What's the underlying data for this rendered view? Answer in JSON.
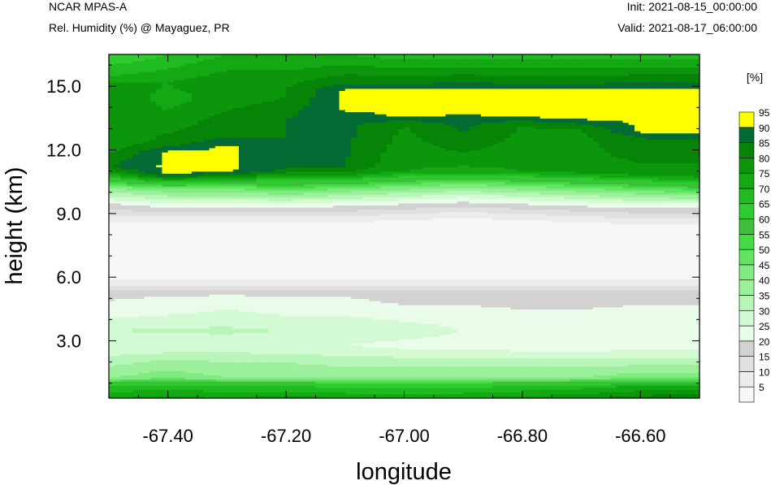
{
  "header": {
    "model": "NCAR MPAS-A",
    "field": "Rel. Humidity (%) @ Mayaguez, PR",
    "init": "Init: 2021-08-15_00:00:00",
    "valid": "Valid: 2021-08-17_06:00:00"
  },
  "chart_data": {
    "type": "heatmap",
    "title": "Rel. Humidity (%) @ Mayaguez, PR",
    "xlabel": "longitude",
    "ylabel": "height (km)",
    "xlim": [
      -67.5,
      -66.5
    ],
    "ylim": [
      0.3,
      16.5
    ],
    "x_ticks": [
      -67.4,
      -67.2,
      -67.0,
      -66.8,
      -66.6
    ],
    "x_tick_labels": [
      "-67.40",
      "-67.20",
      "-67.00",
      "-66.80",
      "-66.60"
    ],
    "y_ticks": [
      3,
      6,
      9,
      12,
      15
    ],
    "y_tick_labels": [
      "3.0",
      "6.0",
      "9.0",
      "12.0",
      "15.0"
    ],
    "colorbar": {
      "unit": "[%]",
      "levels": [
        5,
        10,
        15,
        20,
        25,
        30,
        35,
        40,
        45,
        50,
        55,
        60,
        65,
        70,
        75,
        80,
        85,
        90,
        95
      ],
      "colors": [
        "#f7f7f7",
        "#ececec",
        "#e0e0e0",
        "#d2d2d2",
        "#e9fce9",
        "#d4fad4",
        "#b8f5b8",
        "#9cf09c",
        "#80eb80",
        "#62e462",
        "#45db45",
        "#3ebc3e",
        "#2ecc2e",
        "#20bb20",
        "#14a814",
        "#0c960c",
        "#078407",
        "#036b33",
        "#ffff00"
      ]
    },
    "profiles": [
      {
        "x": -67.5,
        "rh": [
          [
            0.3,
            80
          ],
          [
            0.9,
            70
          ],
          [
            1.3,
            45
          ],
          [
            2.0,
            38
          ],
          [
            2.8,
            30
          ],
          [
            3.5,
            35
          ],
          [
            4.5,
            26
          ],
          [
            5.3,
            24
          ],
          [
            5.6,
            15
          ],
          [
            6.2,
            5
          ],
          [
            8.3,
            5
          ],
          [
            8.9,
            15
          ],
          [
            9.5,
            25
          ],
          [
            10.2,
            45
          ],
          [
            10.8,
            75
          ],
          [
            11.2,
            90
          ],
          [
            12.5,
            80
          ],
          [
            15.0,
            85
          ],
          [
            15.5,
            75
          ],
          [
            16.5,
            65
          ]
        ]
      },
      {
        "x": -67.4,
        "rh": [
          [
            0.3,
            82
          ],
          [
            0.9,
            72
          ],
          [
            1.3,
            48
          ],
          [
            2.0,
            42
          ],
          [
            2.8,
            30
          ],
          [
            3.5,
            36
          ],
          [
            4.5,
            28
          ],
          [
            5.3,
            24
          ],
          [
            5.6,
            15
          ],
          [
            6.2,
            5
          ],
          [
            8.3,
            5
          ],
          [
            8.9,
            15
          ],
          [
            9.5,
            30
          ],
          [
            10.2,
            50
          ],
          [
            10.7,
            85
          ],
          [
            10.9,
            96
          ],
          [
            11.9,
            96
          ],
          [
            12.3,
            88
          ],
          [
            13.3,
            82
          ],
          [
            14.5,
            78
          ],
          [
            15.2,
            80
          ],
          [
            16.5,
            70
          ]
        ]
      },
      {
        "x": -67.3,
        "rh": [
          [
            0.3,
            80
          ],
          [
            0.9,
            70
          ],
          [
            1.3,
            45
          ],
          [
            2.0,
            40
          ],
          [
            2.8,
            32
          ],
          [
            3.5,
            36
          ],
          [
            4.5,
            30
          ],
          [
            5.3,
            24
          ],
          [
            5.6,
            15
          ],
          [
            6.2,
            5
          ],
          [
            8.3,
            5
          ],
          [
            8.9,
            15
          ],
          [
            9.5,
            30
          ],
          [
            10.2,
            50
          ],
          [
            10.8,
            85
          ],
          [
            11.0,
            96
          ],
          [
            12.2,
            96
          ],
          [
            12.6,
            90
          ],
          [
            13.3,
            88
          ],
          [
            14.5,
            82
          ],
          [
            15.0,
            85
          ],
          [
            16.5,
            75
          ]
        ]
      },
      {
        "x": -67.2,
        "rh": [
          [
            0.3,
            82
          ],
          [
            0.9,
            70
          ],
          [
            1.3,
            45
          ],
          [
            2.0,
            40
          ],
          [
            2.8,
            30
          ],
          [
            3.5,
            35
          ],
          [
            4.5,
            28
          ],
          [
            5.3,
            24
          ],
          [
            5.6,
            15
          ],
          [
            6.2,
            5
          ],
          [
            8.3,
            5
          ],
          [
            8.9,
            15
          ],
          [
            9.5,
            30
          ],
          [
            10.2,
            55
          ],
          [
            10.8,
            80
          ],
          [
            11.1,
            90
          ],
          [
            13.5,
            90
          ],
          [
            14.5,
            85
          ],
          [
            15.0,
            85
          ],
          [
            16.5,
            75
          ]
        ]
      },
      {
        "x": -67.1,
        "rh": [
          [
            0.3,
            80
          ],
          [
            0.9,
            68
          ],
          [
            1.3,
            45
          ],
          [
            2.0,
            38
          ],
          [
            2.8,
            30
          ],
          [
            3.5,
            34
          ],
          [
            4.5,
            28
          ],
          [
            5.3,
            24
          ],
          [
            5.6,
            15
          ],
          [
            6.2,
            5
          ],
          [
            8.3,
            5
          ],
          [
            8.9,
            15
          ],
          [
            9.5,
            28
          ],
          [
            10.2,
            50
          ],
          [
            10.8,
            80
          ],
          [
            11.2,
            90
          ],
          [
            13.6,
            92
          ],
          [
            13.9,
            96
          ],
          [
            14.8,
            96
          ],
          [
            15.1,
            90
          ],
          [
            16.5,
            75
          ]
        ]
      },
      {
        "x": -67.0,
        "rh": [
          [
            0.3,
            78
          ],
          [
            0.9,
            68
          ],
          [
            1.3,
            45
          ],
          [
            2.0,
            38
          ],
          [
            2.8,
            28
          ],
          [
            3.5,
            33
          ],
          [
            4.5,
            26
          ],
          [
            5.3,
            22
          ],
          [
            5.6,
            15
          ],
          [
            6.2,
            5
          ],
          [
            8.4,
            5
          ],
          [
            9.0,
            15
          ],
          [
            9.6,
            28
          ],
          [
            10.3,
            50
          ],
          [
            11.0,
            80
          ],
          [
            13.2,
            85
          ],
          [
            13.6,
            96
          ],
          [
            14.8,
            96
          ],
          [
            15.1,
            90
          ],
          [
            16.5,
            72
          ]
        ]
      },
      {
        "x": -66.9,
        "rh": [
          [
            0.3,
            80
          ],
          [
            0.9,
            68
          ],
          [
            1.3,
            45
          ],
          [
            2.0,
            38
          ],
          [
            2.8,
            28
          ],
          [
            3.5,
            30
          ],
          [
            4.5,
            26
          ],
          [
            5.3,
            22
          ],
          [
            5.6,
            15
          ],
          [
            6.2,
            5
          ],
          [
            8.5,
            5
          ],
          [
            9.1,
            15
          ],
          [
            9.7,
            28
          ],
          [
            10.4,
            50
          ],
          [
            11.0,
            78
          ],
          [
            12.3,
            88
          ],
          [
            13.4,
            92
          ],
          [
            13.8,
            96
          ],
          [
            14.8,
            96
          ],
          [
            15.2,
            90
          ],
          [
            16.5,
            72
          ]
        ]
      },
      {
        "x": -66.8,
        "rh": [
          [
            0.3,
            82
          ],
          [
            0.9,
            70
          ],
          [
            1.3,
            45
          ],
          [
            2.0,
            38
          ],
          [
            2.8,
            26
          ],
          [
            3.5,
            30
          ],
          [
            4.5,
            25
          ],
          [
            5.3,
            22
          ],
          [
            5.6,
            15
          ],
          [
            6.2,
            5
          ],
          [
            8.4,
            5
          ],
          [
            9.0,
            15
          ],
          [
            9.6,
            28
          ],
          [
            10.3,
            50
          ],
          [
            11.0,
            80
          ],
          [
            13.2,
            85
          ],
          [
            13.6,
            96
          ],
          [
            14.8,
            96
          ],
          [
            15.1,
            90
          ],
          [
            16.5,
            72
          ]
        ]
      },
      {
        "x": -66.7,
        "rh": [
          [
            0.3,
            84
          ],
          [
            0.9,
            72
          ],
          [
            1.3,
            45
          ],
          [
            2.0,
            38
          ],
          [
            2.8,
            25
          ],
          [
            3.5,
            28
          ],
          [
            4.5,
            25
          ],
          [
            5.3,
            22
          ],
          [
            5.6,
            15
          ],
          [
            6.2,
            5
          ],
          [
            8.3,
            5
          ],
          [
            8.9,
            15
          ],
          [
            9.5,
            28
          ],
          [
            10.2,
            50
          ],
          [
            10.9,
            80
          ],
          [
            13.0,
            85
          ],
          [
            13.5,
            96
          ],
          [
            14.8,
            96
          ],
          [
            15.1,
            90
          ],
          [
            16.5,
            72
          ]
        ]
      },
      {
        "x": -66.6,
        "rh": [
          [
            0.3,
            88
          ],
          [
            0.9,
            75
          ],
          [
            1.3,
            48
          ],
          [
            2.0,
            38
          ],
          [
            2.8,
            28
          ],
          [
            3.5,
            30
          ],
          [
            4.5,
            26
          ],
          [
            5.3,
            22
          ],
          [
            5.6,
            15
          ],
          [
            6.2,
            5
          ],
          [
            8.2,
            5
          ],
          [
            8.8,
            15
          ],
          [
            9.4,
            28
          ],
          [
            10.1,
            50
          ],
          [
            10.8,
            80
          ],
          [
            11.8,
            88
          ],
          [
            12.6,
            90
          ],
          [
            12.9,
            96
          ],
          [
            14.9,
            96
          ],
          [
            15.2,
            90
          ],
          [
            16.5,
            72
          ]
        ]
      },
      {
        "x": -66.5,
        "rh": [
          [
            0.3,
            90
          ],
          [
            0.9,
            75
          ],
          [
            1.3,
            48
          ],
          [
            2.0,
            38
          ],
          [
            2.8,
            28
          ],
          [
            3.5,
            30
          ],
          [
            4.5,
            26
          ],
          [
            5.3,
            22
          ],
          [
            5.6,
            15
          ],
          [
            6.2,
            5
          ],
          [
            8.2,
            5
          ],
          [
            8.8,
            15
          ],
          [
            9.4,
            28
          ],
          [
            10.0,
            50
          ],
          [
            10.7,
            80
          ],
          [
            11.8,
            88
          ],
          [
            12.5,
            90
          ],
          [
            12.8,
            96
          ],
          [
            14.9,
            96
          ],
          [
            15.2,
            90
          ],
          [
            16.5,
            72
          ]
        ]
      }
    ]
  }
}
